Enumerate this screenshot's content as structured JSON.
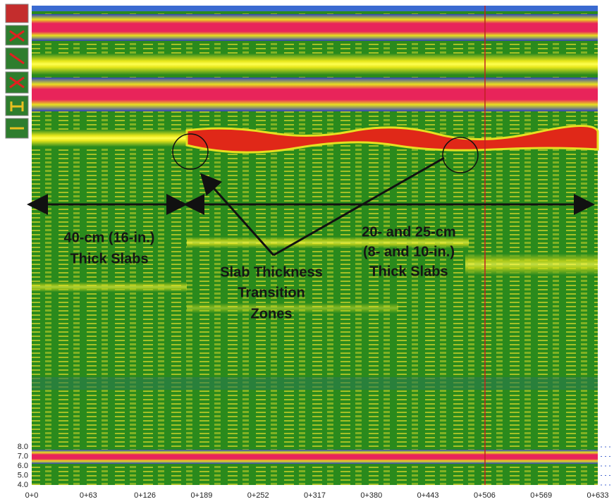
{
  "annotations": {
    "left_label": [
      "40-cm (16-in.)",
      "Thick Slabs"
    ],
    "center_label": [
      "Slab Thickness",
      "Transition",
      "Zones"
    ],
    "right_label": [
      "20- and 25-cm",
      "(8- and 10-in.)",
      "Thick Slabs"
    ]
  },
  "x_axis_labels": [
    "0+0",
    "0+63",
    "0+126",
    "0+189",
    "0+252",
    "0+317",
    "0+380",
    "0+443",
    "0+506",
    "0+569",
    "0+633"
  ],
  "depth_labels": [
    "8.0",
    "7.0",
    "6.0",
    "5.0",
    "4.0"
  ]
}
